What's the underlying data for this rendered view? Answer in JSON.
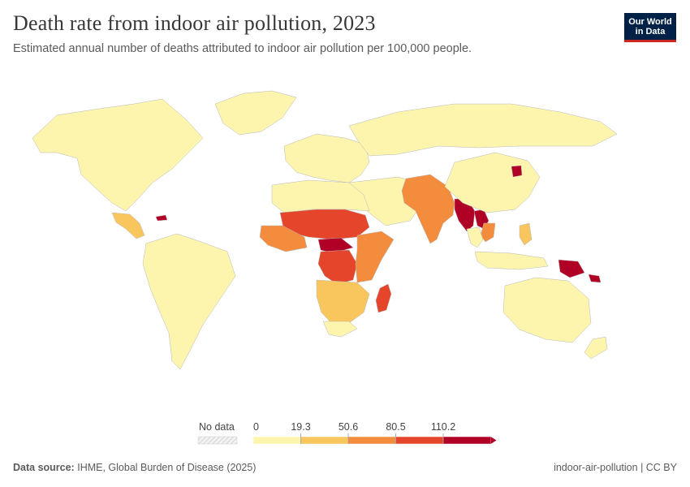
{
  "title": "Death rate from indoor air pollution, 2023",
  "subtitle": "Estimated annual number of deaths attributed to indoor air pollution per 100,000 people.",
  "logo": {
    "line1": "Our World",
    "line2": "in Data",
    "bg_color": "#002147",
    "accent_color": "#ce261e"
  },
  "legend": {
    "no_data_label": "No data",
    "ticks": [
      "0",
      "19.3",
      "50.6",
      "80.5",
      "110.2"
    ],
    "colors": [
      "#fdf5ad",
      "#f9c55d",
      "#f38d3d",
      "#e5452a",
      "#b10026"
    ]
  },
  "footer": {
    "source_label": "Data source:",
    "source_text": "IHME, Global Burden of Disease (2025)",
    "right_text": "indoor-air-pollution | CC BY"
  },
  "chart_data": {
    "type": "choropleth",
    "title": "Death rate from indoor air pollution, 2023",
    "bins": [
      0,
      19.3,
      50.6,
      80.5,
      110.2
    ],
    "regions": [
      {
        "name": "North America",
        "bin": 0
      },
      {
        "name": "Greenland",
        "bin": 0
      },
      {
        "name": "Central America",
        "bin": 1
      },
      {
        "name": "Haiti",
        "bin": 4
      },
      {
        "name": "South America",
        "bin": 0
      },
      {
        "name": "Europe",
        "bin": 0
      },
      {
        "name": "Russia",
        "bin": 0
      },
      {
        "name": "Middle East",
        "bin": 0
      },
      {
        "name": "North Africa",
        "bin": 0
      },
      {
        "name": "Sahel",
        "bin": 3
      },
      {
        "name": "West Africa",
        "bin": 2
      },
      {
        "name": "Central African Republic",
        "bin": 4
      },
      {
        "name": "DR Congo",
        "bin": 3
      },
      {
        "name": "East Africa",
        "bin": 2
      },
      {
        "name": "Southern Africa",
        "bin": 1
      },
      {
        "name": "South Africa",
        "bin": 0
      },
      {
        "name": "Madagascar",
        "bin": 3
      },
      {
        "name": "Pakistan & India",
        "bin": 2
      },
      {
        "name": "Myanmar",
        "bin": 4
      },
      {
        "name": "Laos",
        "bin": 4
      },
      {
        "name": "Vietnam & Cambodia",
        "bin": 2
      },
      {
        "name": "Thailand",
        "bin": 0
      },
      {
        "name": "China",
        "bin": 0
      },
      {
        "name": "North Korea",
        "bin": 4
      },
      {
        "name": "Philippines",
        "bin": 1
      },
      {
        "name": "Indonesia",
        "bin": 0
      },
      {
        "name": "Papua New Guinea",
        "bin": 4
      },
      {
        "name": "Solomon Islands",
        "bin": 4
      },
      {
        "name": "Australia",
        "bin": 0
      },
      {
        "name": "New Zealand",
        "bin": 0
      }
    ]
  }
}
